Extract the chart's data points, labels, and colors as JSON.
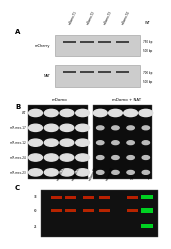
{
  "panel_a_label": "A",
  "panel_b_label": "B",
  "panel_c_label": "C",
  "mcherry_label": "mCherry",
  "nat_label": "NAT",
  "mdomo_label": "mDomo",
  "mdomo_nat_label": "mDomo + NAT",
  "wt_label": "WT",
  "plus_label": "+",
  "size_750": "750 bp",
  "size_500": "500 bp",
  "size_700": "700 bp",
  "size_500b": "500 bp",
  "sample_labels_a": [
    "mDomo-T1",
    "mDomo-T2",
    "mDomo-T3",
    "mDomo-T4"
  ],
  "row_labels_b": [
    "WT",
    "miR-mec-17",
    "miR-mec-12",
    "miR-mec-24",
    "miR-mec-23"
  ],
  "sample_labels_c": [
    "mDomo-T1",
    "mDomo-T2",
    "mDomo-T3",
    "mDomo-T4"
  ],
  "kda_labels": [
    "38",
    "60",
    "25"
  ],
  "gel_bg": "#cccccc",
  "gel_band": "#444444",
  "blot_bg": "#111111",
  "red_band": "#cc2200",
  "green_band": "#00dd22",
  "colony_light": "#e0e0e0",
  "colony_dark": "#bbbbbb",
  "black_panel": "#0d0d0d"
}
